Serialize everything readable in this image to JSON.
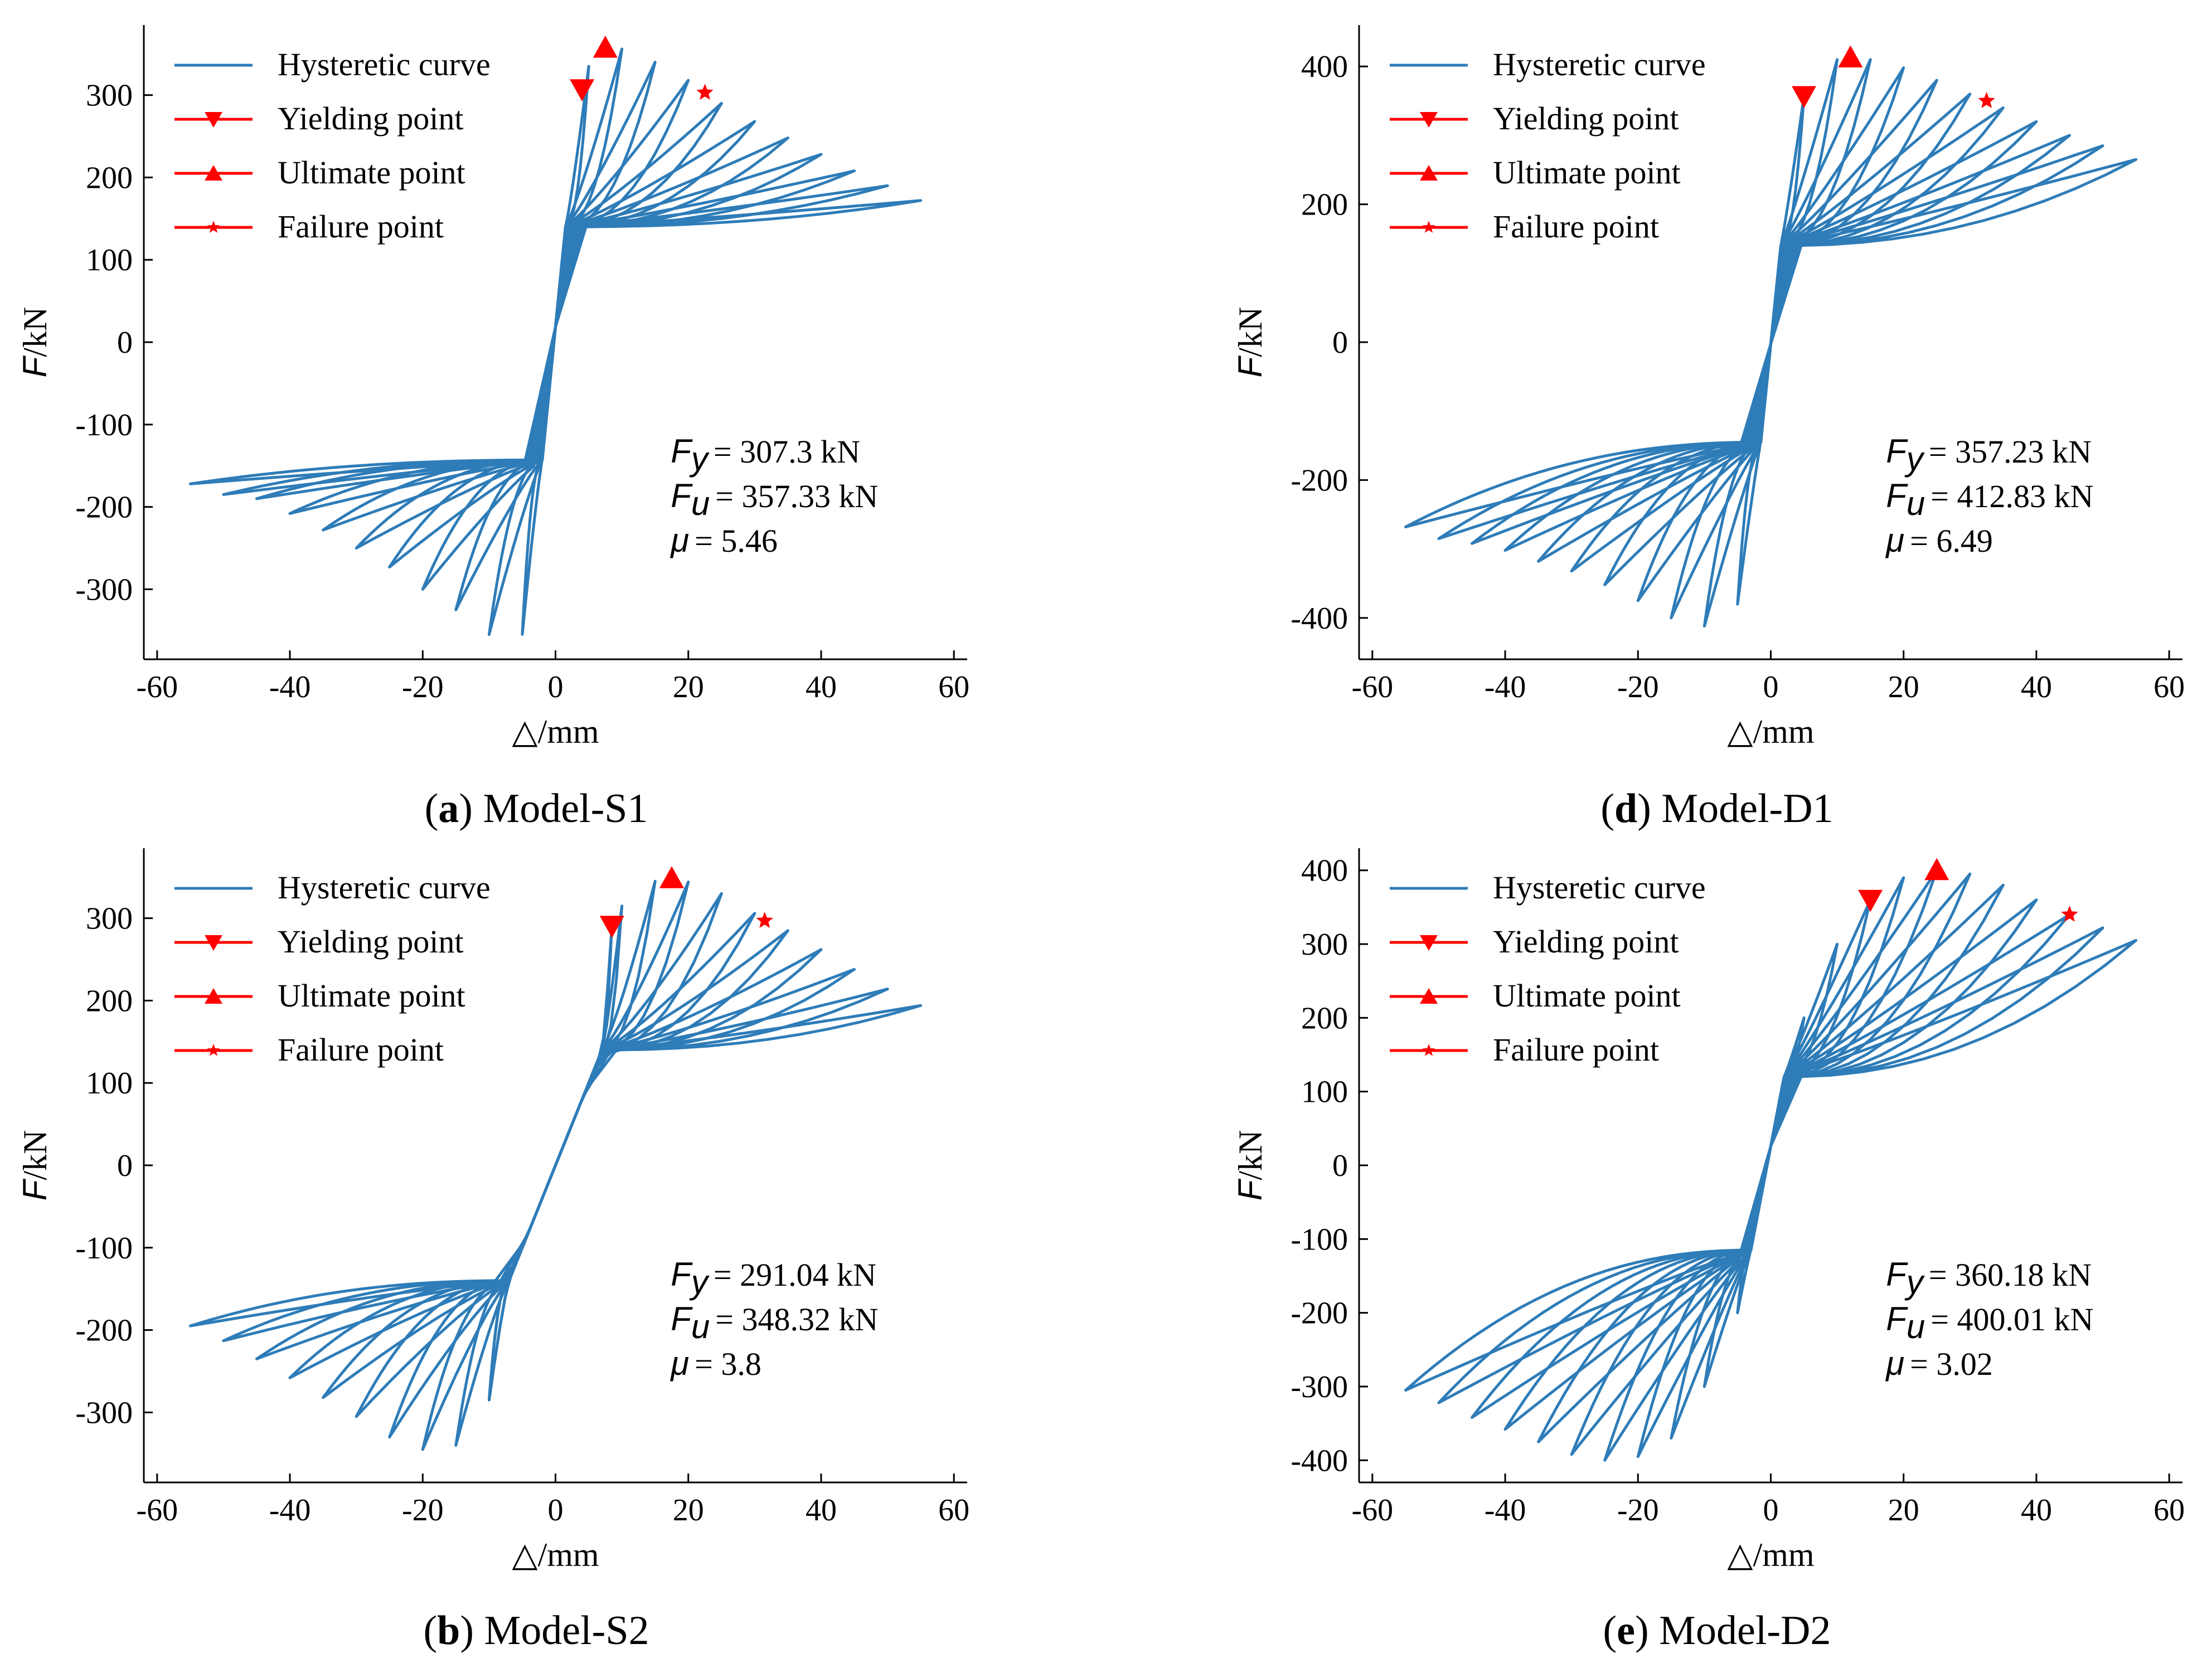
{
  "figure": {
    "colors": {
      "curve": "#2e7cb8",
      "marker": "#ff0000"
    }
  },
  "chart_data": [
    {
      "id": "S1",
      "type": "line",
      "caption_letter": "a",
      "caption_name": "Model-S1",
      "xlabel": "△/mm",
      "ylabel_var": "F",
      "ylabel_unit": "/kN",
      "xlim": [
        -62,
        62
      ],
      "ylim": [
        -385,
        385
      ],
      "xticks": [
        -60,
        -40,
        -20,
        0,
        20,
        40,
        60
      ],
      "xtick_labels": [
        "-60",
        "-40",
        "-20",
        "0",
        "20",
        "40",
        "60"
      ],
      "yticks": [
        -300,
        -200,
        -100,
        0,
        100,
        200,
        300
      ],
      "ytick_labels": [
        "-300",
        "-200",
        "-100",
        "0",
        "100",
        "200",
        "300"
      ],
      "legend": {
        "placement": "top-left",
        "entries": [
          "Hysteretic curve",
          "Yielding point",
          "Ultimate point",
          "Failure point"
        ]
      },
      "annotation": {
        "fy_value": "= 307.3  kN",
        "fu_value": "= 357.33  kN",
        "mu_value": "= 5.46"
      },
      "pinch_pos": [
        1.5,
        140
      ],
      "pinch_neg": [
        -2,
        -143
      ],
      "skeleton_pos": {
        "x": [
          2,
          3,
          4,
          5,
          7.5,
          10,
          15,
          20,
          22.5,
          25,
          30,
          35,
          40,
          45,
          50,
          55
        ],
        "y": [
          140,
          270,
          307,
          335,
          357,
          356,
          340,
          318,
          303,
          290,
          268,
          248,
          228,
          208,
          190,
          172
        ]
      },
      "skeleton_neg": {
        "x": [
          -2,
          -3,
          -4,
          -5,
          -7.5,
          -10,
          -15,
          -20,
          -25,
          -30,
          -35,
          -40,
          -45,
          -50,
          -55
        ],
        "y": [
          -143,
          -280,
          -330,
          -355,
          -360,
          -355,
          -325,
          -300,
          -273,
          -250,
          -228,
          -208,
          -190,
          -185,
          -172
        ]
      },
      "pos_shape": 0.45,
      "neg_shape": 0.45,
      "points": {
        "yield": {
          "x": 4,
          "y": 307.3
        },
        "ultimate": {
          "x": 7.5,
          "y": 357.33
        },
        "failure": {
          "x": 22.5,
          "y": 303
        }
      }
    },
    {
      "id": "D1",
      "type": "line",
      "caption_letter": "d",
      "caption_name": "Model-D1",
      "xlabel": "△/mm",
      "ylabel_var": "F",
      "ylabel_unit": "/kN",
      "xlim": [
        -62,
        62
      ],
      "ylim": [
        -460,
        460
      ],
      "xticks": [
        -60,
        -40,
        -20,
        0,
        20,
        40,
        60
      ],
      "xtick_labels": [
        "-60",
        "-40",
        "-20",
        "0",
        "20",
        "40",
        "60"
      ],
      "yticks": [
        -400,
        -200,
        0,
        200,
        400
      ],
      "ytick_labels": [
        "-400",
        "-200",
        "0",
        "200",
        "400"
      ],
      "legend": {
        "placement": "top-left",
        "entries": [
          "Hysteretic curve",
          "Yielding point",
          "Ultimate point",
          "Failure point"
        ]
      },
      "annotation": {
        "fy_value": "= 357.23  kN",
        "fu_value": "= 412.83  kN",
        "mu_value": "= 6.49"
      },
      "pinch_pos": [
        1.5,
        140
      ],
      "pinch_neg": [
        -1.5,
        -145
      ],
      "skeleton_pos": {
        "x": [
          2,
          3,
          5,
          7.5,
          10,
          12,
          15,
          20,
          25,
          30,
          32.5,
          35,
          40,
          45,
          50,
          55
        ],
        "y": [
          140,
          300,
          357,
          395,
          410,
          412,
          410,
          398,
          380,
          360,
          350,
          340,
          320,
          300,
          285,
          265
        ]
      },
      "skeleton_neg": {
        "x": [
          -1.5,
          -3,
          -5,
          -7.5,
          -10,
          -12,
          -15,
          -20,
          -25,
          -30,
          -35,
          -40,
          -45,
          -50,
          -55
        ],
        "y": [
          -145,
          -320,
          -380,
          -405,
          -412,
          -412,
          -400,
          -375,
          -352,
          -332,
          -318,
          -302,
          -292,
          -285,
          -268
        ]
      },
      "pos_shape": 0.5,
      "neg_shape": 0.5,
      "points": {
        "yield": {
          "x": 5,
          "y": 357.23
        },
        "ultimate": {
          "x": 12,
          "y": 412.83
        },
        "failure": {
          "x": 32.5,
          "y": 350
        }
      }
    },
    {
      "id": "S2",
      "type": "line",
      "caption_letter": "b",
      "caption_name": "Model-S2",
      "xlabel": "△/mm",
      "ylabel_var": "F",
      "ylabel_unit": "/kN",
      "xlim": [
        -62,
        62
      ],
      "ylim": [
        -385,
        385
      ],
      "xticks": [
        -60,
        -40,
        -20,
        0,
        20,
        40,
        60
      ],
      "xtick_labels": [
        "-60",
        "-40",
        "-20",
        "0",
        "20",
        "40",
        "60"
      ],
      "yticks": [
        -300,
        -200,
        -100,
        0,
        100,
        200,
        300
      ],
      "ytick_labels": [
        "-300",
        "-200",
        "-100",
        "0",
        "100",
        "200",
        "300"
      ],
      "legend": {
        "placement": "top-left",
        "entries": [
          "Hysteretic curve",
          "Yielding point",
          "Ultimate point",
          "Failure point"
        ]
      },
      "annotation": {
        "fy_value": "= 291.04  kN",
        "fu_value": "= 348.32  kN",
        "mu_value": "= 3.8"
      },
      "pinch_pos": [
        7,
        140
      ],
      "pinch_neg": [
        -7,
        -140
      ],
      "skeleton_pos": {
        "x": [
          7.5,
          8.5,
          10,
          12.5,
          15,
          17.5,
          20,
          25,
          30,
          31.5,
          35,
          40,
          45,
          50,
          55
        ],
        "y": [
          140,
          291,
          315,
          333,
          345,
          348,
          344,
          330,
          306,
          297,
          285,
          262,
          238,
          214,
          194
        ]
      },
      "skeleton_neg": {
        "x": [
          -7.5,
          -10,
          -12.5,
          -15,
          -17.5,
          -20,
          -25,
          -30,
          -35,
          -40,
          -45,
          -50,
          -55
        ],
        "y": [
          -140,
          -285,
          -320,
          -340,
          -348,
          -345,
          -330,
          -305,
          -282,
          -258,
          -235,
          -213,
          -195
        ]
      },
      "pos_shape": 0.4,
      "neg_shape": 0.4,
      "points": {
        "yield": {
          "x": 8.5,
          "y": 291.04
        },
        "ultimate": {
          "x": 17.5,
          "y": 348.32
        },
        "failure": {
          "x": 31.5,
          "y": 297
        }
      }
    },
    {
      "id": "D2",
      "type": "line",
      "caption_letter": "e",
      "caption_name": "Model-D2",
      "xlabel": "△/mm",
      "ylabel_var": "F",
      "ylabel_unit": "/kN",
      "xlim": [
        -62,
        62
      ],
      "ylim": [
        -430,
        430
      ],
      "xticks": [
        -60,
        -40,
        -20,
        0,
        20,
        40,
        60
      ],
      "xtick_labels": [
        "-60",
        "-40",
        "-20",
        "0",
        "20",
        "40",
        "60"
      ],
      "yticks": [
        -400,
        -300,
        -200,
        -100,
        0,
        100,
        200,
        300,
        400
      ],
      "ytick_labels": [
        "-400",
        "-300",
        "-200",
        "-100",
        "0",
        "100",
        "200",
        "300",
        "400"
      ],
      "legend": {
        "placement": "top-left",
        "entries": [
          "Hysteretic curve",
          "Yielding point",
          "Ultimate point",
          "Failure point"
        ]
      },
      "annotation": {
        "fy_value": "= 360.18  kN",
        "fu_value": "= 400.01  kN",
        "mu_value": "= 3.02"
      },
      "pinch_pos": [
        2,
        120
      ],
      "pinch_neg": [
        -3,
        -115
      ],
      "skeleton_pos": {
        "x": [
          3,
          5,
          7.5,
          10,
          12.5,
          15,
          20,
          25,
          30,
          35,
          40,
          45,
          50,
          55
        ],
        "y": [
          120,
          200,
          250,
          300,
          340,
          360,
          390,
          400,
          395,
          380,
          360,
          340,
          322,
          305
        ]
      },
      "skeleton_neg": {
        "x": [
          -3,
          -5,
          -7.5,
          -10,
          -12.5,
          -15,
          -20,
          -25,
          -30,
          -35,
          -40,
          -45,
          -50,
          -55
        ],
        "y": [
          -115,
          -200,
          -260,
          -300,
          -340,
          -370,
          -395,
          -400,
          -392,
          -375,
          -358,
          -342,
          -322,
          -305
        ]
      },
      "pos_shape": 0.5,
      "neg_shape": 0.5,
      "points": {
        "yield": {
          "x": 15,
          "y": 360.18
        },
        "ultimate": {
          "x": 25,
          "y": 400.01
        },
        "failure": {
          "x": 45,
          "y": 340
        }
      }
    }
  ]
}
